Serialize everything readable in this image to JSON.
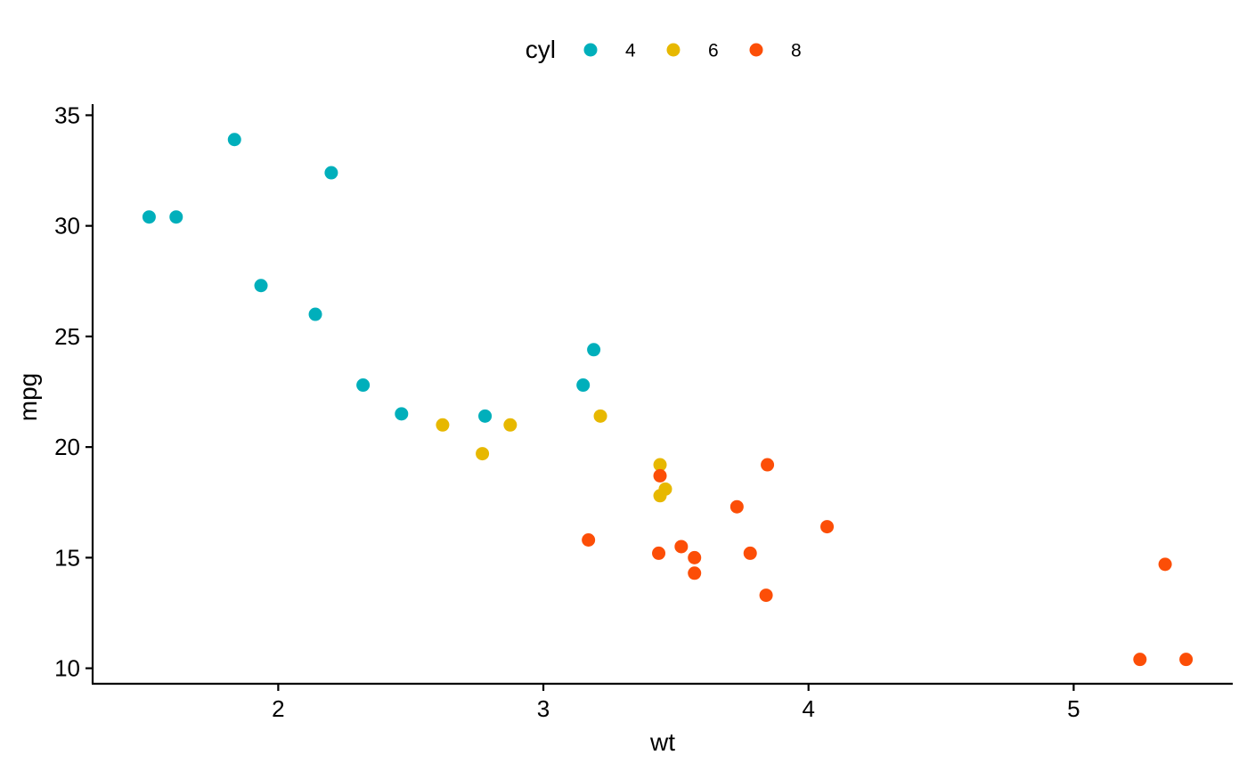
{
  "chart_data": {
    "type": "scatter",
    "title": "",
    "xlabel": "wt",
    "ylabel": "mpg",
    "xlim": [
      1.3,
      5.6
    ],
    "ylim": [
      9.3,
      35.5
    ],
    "x_ticks": [
      2,
      3,
      4,
      5
    ],
    "y_ticks": [
      10,
      15,
      20,
      25,
      30,
      35
    ],
    "grid": false,
    "legend": {
      "title": "cyl",
      "position": "top",
      "entries": [
        {
          "label": "4",
          "color": "#00AFBB"
        },
        {
          "label": "6",
          "color": "#E7B800"
        },
        {
          "label": "8",
          "color": "#FC4E07"
        }
      ]
    },
    "series": [
      {
        "name": "4",
        "color": "#00AFBB",
        "points": [
          {
            "x": 1.513,
            "y": 30.4
          },
          {
            "x": 1.615,
            "y": 30.4
          },
          {
            "x": 1.835,
            "y": 33.9
          },
          {
            "x": 1.935,
            "y": 27.3
          },
          {
            "x": 2.14,
            "y": 26.0
          },
          {
            "x": 2.2,
            "y": 32.4
          },
          {
            "x": 2.32,
            "y": 22.8
          },
          {
            "x": 2.465,
            "y": 21.5
          },
          {
            "x": 2.78,
            "y": 21.4
          },
          {
            "x": 3.15,
            "y": 22.8
          },
          {
            "x": 3.19,
            "y": 24.4
          }
        ]
      },
      {
        "name": "6",
        "color": "#E7B800",
        "points": [
          {
            "x": 2.62,
            "y": 21.0
          },
          {
            "x": 2.77,
            "y": 19.7
          },
          {
            "x": 2.875,
            "y": 21.0
          },
          {
            "x": 3.215,
            "y": 21.4
          },
          {
            "x": 3.44,
            "y": 19.2
          },
          {
            "x": 3.44,
            "y": 17.8
          },
          {
            "x": 3.46,
            "y": 18.1
          }
        ]
      },
      {
        "name": "8",
        "color": "#FC4E07",
        "points": [
          {
            "x": 3.17,
            "y": 15.8
          },
          {
            "x": 3.435,
            "y": 15.2
          },
          {
            "x": 3.44,
            "y": 18.7
          },
          {
            "x": 3.52,
            "y": 15.5
          },
          {
            "x": 3.57,
            "y": 14.3
          },
          {
            "x": 3.57,
            "y": 15.0
          },
          {
            "x": 3.73,
            "y": 17.3
          },
          {
            "x": 3.78,
            "y": 15.2
          },
          {
            "x": 3.84,
            "y": 13.3
          },
          {
            "x": 3.845,
            "y": 19.2
          },
          {
            "x": 4.07,
            "y": 16.4
          },
          {
            "x": 5.25,
            "y": 10.4
          },
          {
            "x": 5.345,
            "y": 14.7
          },
          {
            "x": 5.424,
            "y": 10.4
          }
        ]
      }
    ]
  }
}
